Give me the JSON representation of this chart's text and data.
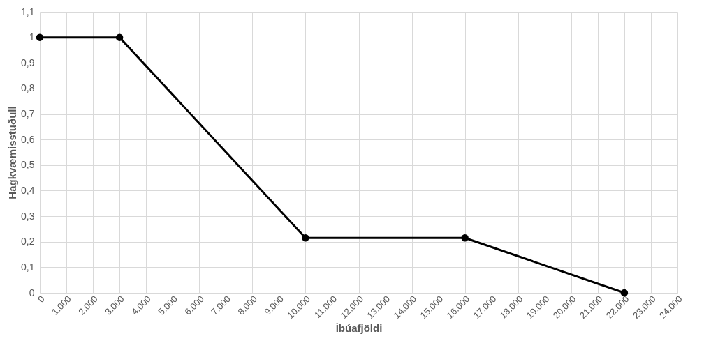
{
  "chart_data": {
    "type": "line",
    "xlabel": "Íbúafjöldi",
    "ylabel": "Hagkvæmisstuðull",
    "x": [
      0,
      3000,
      10000,
      16000,
      22000
    ],
    "series": [
      {
        "color": "#000000",
        "values": [
          1,
          1,
          0.215,
          0.215,
          0
        ]
      }
    ],
    "xlim": [
      0,
      24000
    ],
    "xticks": [
      0,
      {
        "value": 1000,
        "label": "1.000"
      },
      {
        "value": 2000,
        "label": "2.000"
      },
      {
        "value": 3000,
        "label": "3.000"
      },
      {
        "value": 4000,
        "label": "4.000"
      },
      {
        "value": 5000,
        "label": "5.000"
      },
      {
        "value": 6000,
        "label": "6.000"
      },
      {
        "value": 7000,
        "label": "7.000"
      },
      {
        "value": 8000,
        "label": "8.000"
      },
      {
        "value": 9000,
        "label": "9.000"
      },
      {
        "value": 10000,
        "label": "10.000"
      },
      {
        "value": 11000,
        "label": "11.000"
      },
      {
        "value": 12000,
        "label": "12.000"
      },
      {
        "value": 13000,
        "label": "13.000"
      },
      {
        "value": 14000,
        "label": "14.000"
      },
      {
        "value": 15000,
        "label": "15.000"
      },
      {
        "value": 16000,
        "label": "16.000"
      },
      {
        "value": 17000,
        "label": "17.000"
      },
      {
        "value": 18000,
        "label": "18.000"
      },
      {
        "value": 19000,
        "label": "19.000"
      },
      {
        "value": 20000,
        "label": "20.000"
      },
      {
        "value": 21000,
        "label": "21.000"
      },
      {
        "value": 22000,
        "label": "22.000"
      },
      {
        "value": 23000,
        "label": "23.000"
      },
      {
        "value": 24000,
        "label": "24.000"
      }
    ],
    "ylim": [
      0,
      1.1
    ],
    "yticks": [
      0,
      {
        "value": 0.1,
        "label": "0,1"
      },
      {
        "value": 0.2,
        "label": "0,2"
      },
      {
        "value": 0.3,
        "label": "0,3"
      },
      {
        "value": 0.4,
        "label": "0,4"
      },
      {
        "value": 0.5,
        "label": "0,5"
      },
      {
        "value": 0.6,
        "label": "0,6"
      },
      {
        "value": 0.7,
        "label": "0,7"
      },
      {
        "value": 0.8,
        "label": "0,8"
      },
      {
        "value": 0.9,
        "label": "0,9"
      },
      1,
      {
        "value": 1.1,
        "label": "1,1"
      }
    ],
    "grid": true,
    "marker": "circle",
    "line_style": "solid"
  }
}
